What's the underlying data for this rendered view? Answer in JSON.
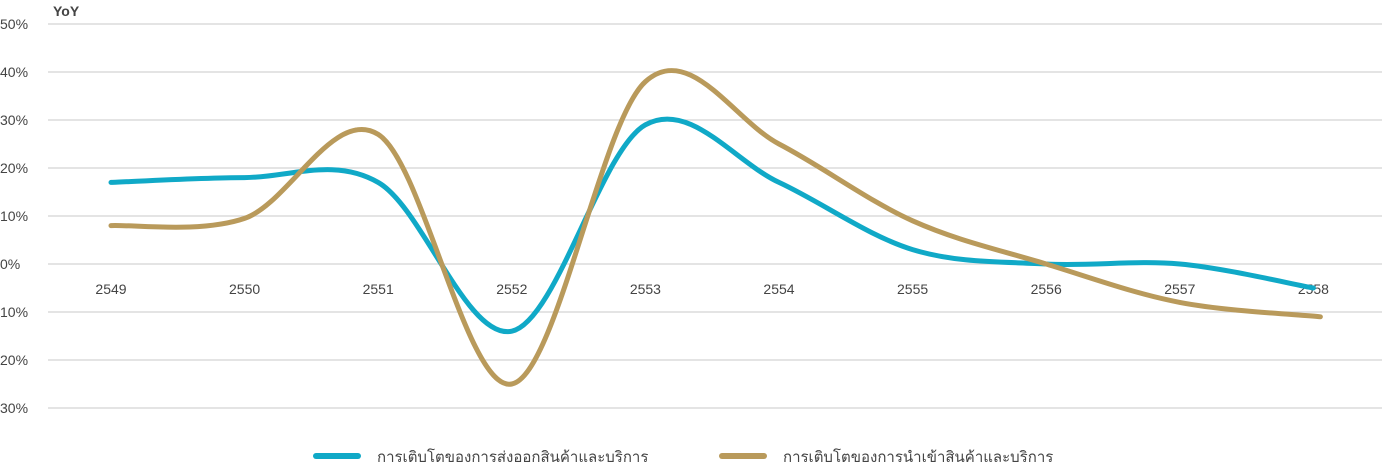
{
  "chart_data": {
    "type": "line",
    "ylabel": "YoY",
    "y_tick_labels": [
      "50%",
      "40%",
      "30%",
      "20%",
      "10%",
      "0%",
      "10%",
      "20%",
      "30%"
    ],
    "y_tick_values": [
      50,
      40,
      30,
      20,
      10,
      0,
      -10,
      -20,
      -30
    ],
    "ylim": [
      -30,
      50
    ],
    "categories": [
      "2549",
      "2550",
      "2551",
      "2552",
      "2553",
      "2554",
      "2555",
      "2556",
      "2557",
      "2558"
    ],
    "grid": true,
    "legend_position": "bottom",
    "series": [
      {
        "name": "การเติบโตของการส่งออกสินค้าและบริการ",
        "color": "#10A9C7",
        "values": [
          17,
          18,
          17,
          -14,
          29,
          17,
          3,
          0,
          0,
          -5
        ]
      },
      {
        "name": "การเติบโตของการนำเข้าสินค้าและบริการ",
        "color": "#B99A5B",
        "values": [
          8,
          9.5,
          27,
          -25,
          38,
          25,
          9,
          0,
          -8,
          -11
        ]
      }
    ]
  }
}
